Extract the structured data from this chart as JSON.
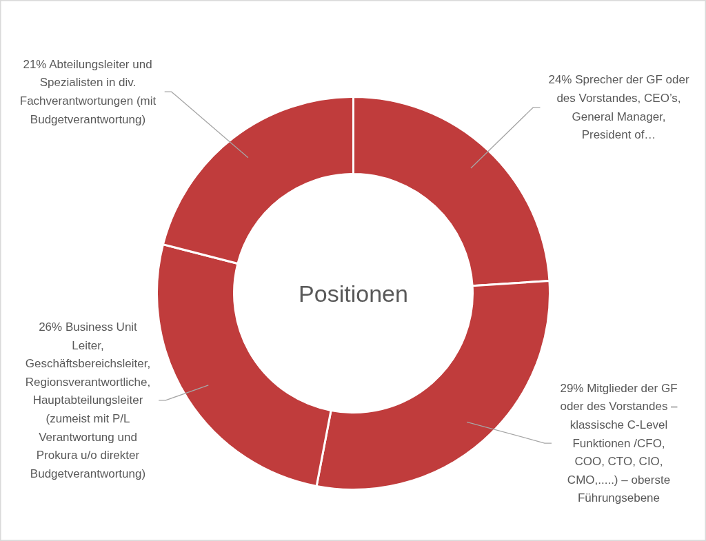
{
  "chart_data": {
    "type": "donut",
    "title": "Positionen",
    "categories": [
      "Sprecher der GF oder des Vorstandes, CEO’s, General Manager, President of…",
      "Mitglieder der GF oder des Vorstandes – klassische C-Level Funktionen /CFO, COO, CTO, CIO, CMO,.....) – oberste Führungsebene",
      "Business Unit Leiter, Geschäftsbereichsleiter, Regionsverantwortliche, Hauptabteilungsleiter (zumeist mit P/L Verantwortung und Prokura u/o direkter Budgetverantwortung)",
      "Abteilungsleiter und Spezialisten in div. Fachverantwortungen (mit Budgetverantwortung)"
    ],
    "values": [
      24,
      29,
      26,
      21
    ],
    "value_labels": [
      "24%",
      "29%",
      "26%",
      "21%"
    ],
    "colors": [
      "#c03c3c",
      "#c03c3c",
      "#c03c3c",
      "#c03c3c"
    ]
  }
}
